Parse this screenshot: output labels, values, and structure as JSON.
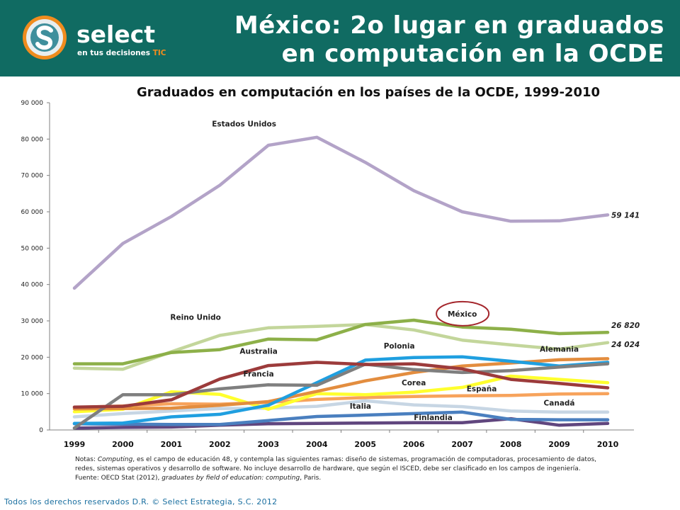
{
  "header": {
    "title_line1": "México: 2o lugar en graduados",
    "title_line2": "en computación en la OCDE",
    "logo_word": "select",
    "logo_tagline": "en tus decisiones",
    "logo_tagline_accent": "TIC",
    "bg_color": "#106b62"
  },
  "chart_data": {
    "type": "line",
    "title": "Graduados en computación en los países de la OCDE, 1999-2010",
    "xlabel": "",
    "ylabel": "",
    "x": [
      "1999",
      "2000",
      "2001",
      "2002",
      "2003",
      "2004",
      "2005",
      "2006",
      "2007",
      "2008",
      "2009",
      "2010"
    ],
    "ylim": [
      0,
      90000
    ],
    "yticks": [
      0,
      10000,
      20000,
      30000,
      40000,
      50000,
      60000,
      70000,
      80000,
      90000
    ],
    "ytick_labels": [
      "0",
      "10 000",
      "20 000",
      "30 000",
      "40 000",
      "50 000",
      "60 000",
      "70 000",
      "80 000",
      "90 000"
    ],
    "grid": false,
    "series": [
      {
        "name": "Estados Unidos",
        "color": "#b3a3c8",
        "values": [
          39000,
          51300,
          58700,
          67300,
          78300,
          80500,
          73600,
          65800,
          60000,
          57400,
          57500,
          59141
        ]
      },
      {
        "name": "México",
        "color": "#8db049",
        "values": [
          18200,
          18200,
          21300,
          22100,
          25000,
          24800,
          29000,
          30200,
          28300,
          27700,
          26500,
          26820
        ]
      },
      {
        "name": "Reino Unido",
        "color": "#c3d69b",
        "values": [
          17000,
          16700,
          21500,
          26000,
          28100,
          28500,
          29000,
          27500,
          24700,
          23400,
          22200,
          24024
        ]
      },
      {
        "name": "Australia",
        "color": "#9c3b3b",
        "values": [
          6300,
          6500,
          8300,
          14000,
          17700,
          18600,
          18000,
          18200,
          16800,
          13900,
          12800,
          11600
        ]
      },
      {
        "name": "Francia",
        "color": "#7f7f7f",
        "values": [
          500,
          9700,
          9700,
          11300,
          12400,
          12300,
          18100,
          16600,
          15800,
          16300,
          17300,
          18200
        ]
      },
      {
        "name": "Polonia",
        "color": "#1f9fe0",
        "values": [
          1800,
          1900,
          3600,
          4300,
          6800,
          13000,
          19200,
          19900,
          20100,
          18900,
          17600,
          18600
        ]
      },
      {
        "name": "Alemania",
        "color": "#e38d3f",
        "values": [
          5800,
          5900,
          6000,
          6800,
          7800,
          10600,
          13500,
          15800,
          17600,
          18400,
          19300,
          19600
        ]
      },
      {
        "name": "Corea",
        "color": "#ffff2e",
        "values": [
          5000,
          5700,
          10500,
          9800,
          5700,
          10000,
          9700,
          10400,
          11700,
          14800,
          13900,
          13000
        ]
      },
      {
        "name": "España",
        "color": "#f7a35c",
        "values": [
          6200,
          6600,
          7200,
          7100,
          7600,
          8400,
          8900,
          9200,
          9400,
          9500,
          9900,
          10000
        ]
      },
      {
        "name": "Italia",
        "color": "#c7d6e4",
        "values": [
          3600,
          4500,
          5200,
          5900,
          6000,
          6500,
          8000,
          6900,
          6400,
          5200,
          4900,
          4900
        ]
      },
      {
        "name": "Canadá",
        "color": "#4a7fbf",
        "values": [
          1700,
          1600,
          1500,
          1500,
          2600,
          3700,
          4100,
          4500,
          4900,
          2900,
          2800,
          2800
        ]
      },
      {
        "name": "Finlandia",
        "color": "#60467e",
        "values": [
          500,
          700,
          800,
          1300,
          1700,
          1800,
          1900,
          2000,
          2000,
          3100,
          1300,
          1800
        ]
      }
    ],
    "series_labels": [
      {
        "text": "Estados Unidos",
        "x": "2002.5",
        "y": 83500
      },
      {
        "text": "México",
        "x": "2007",
        "y": 31200
      },
      {
        "text": "Reino Unido",
        "x": "2001.5",
        "y": 30300
      },
      {
        "text": "Australia",
        "x": "2002.8",
        "y": 20900
      },
      {
        "text": "Francia",
        "x": "2002.8",
        "y": 14700
      },
      {
        "text": "Polonia",
        "x": "2005.7",
        "y": 22400
      },
      {
        "text": "Alemania",
        "x": "2009",
        "y": 21500
      },
      {
        "text": "Corea",
        "x": "2006",
        "y": 12300
      },
      {
        "text": "España",
        "x": "2007.4",
        "y": 10600
      },
      {
        "text": "Italia",
        "x": "2004.9",
        "y": 5800
      },
      {
        "text": "Canadá",
        "x": "2009",
        "y": 6700
      },
      {
        "text": "Finlandia",
        "x": "2006.4",
        "y": 2700
      }
    ],
    "end_labels": [
      {
        "text": "59 141",
        "series": "Estados Unidos",
        "y": 59141
      },
      {
        "text": "26 820",
        "series": "México",
        "y": 28800
      },
      {
        "text": "24 024",
        "series": "Reino Unido",
        "y": 23600
      }
    ],
    "highlight": {
      "label": "México",
      "color": "#a4262c"
    }
  },
  "notes": {
    "line1_prefix": "Notas: ",
    "line1_italic": "Computing",
    "line1_rest": ", es el campo de educación 48, y contempla las siguientes ramas: diseño de sistemas, programación de computadoras, procesamiento de datos,",
    "line2": "redes, sistemas operativos y desarrollo de software. No incluye desarrollo de hardware, que según el ISCED, debe ser clasificado en los campos de ingeniería.",
    "line3_prefix": "Fuente: OECD Stat (2012), ",
    "line3_italic": "graduates by field of education: computing",
    "line3_suffix": ", Paris."
  },
  "footer": {
    "text": "Todos los derechos reservados D.R. © Select Estrategia, S.C. 2012"
  }
}
